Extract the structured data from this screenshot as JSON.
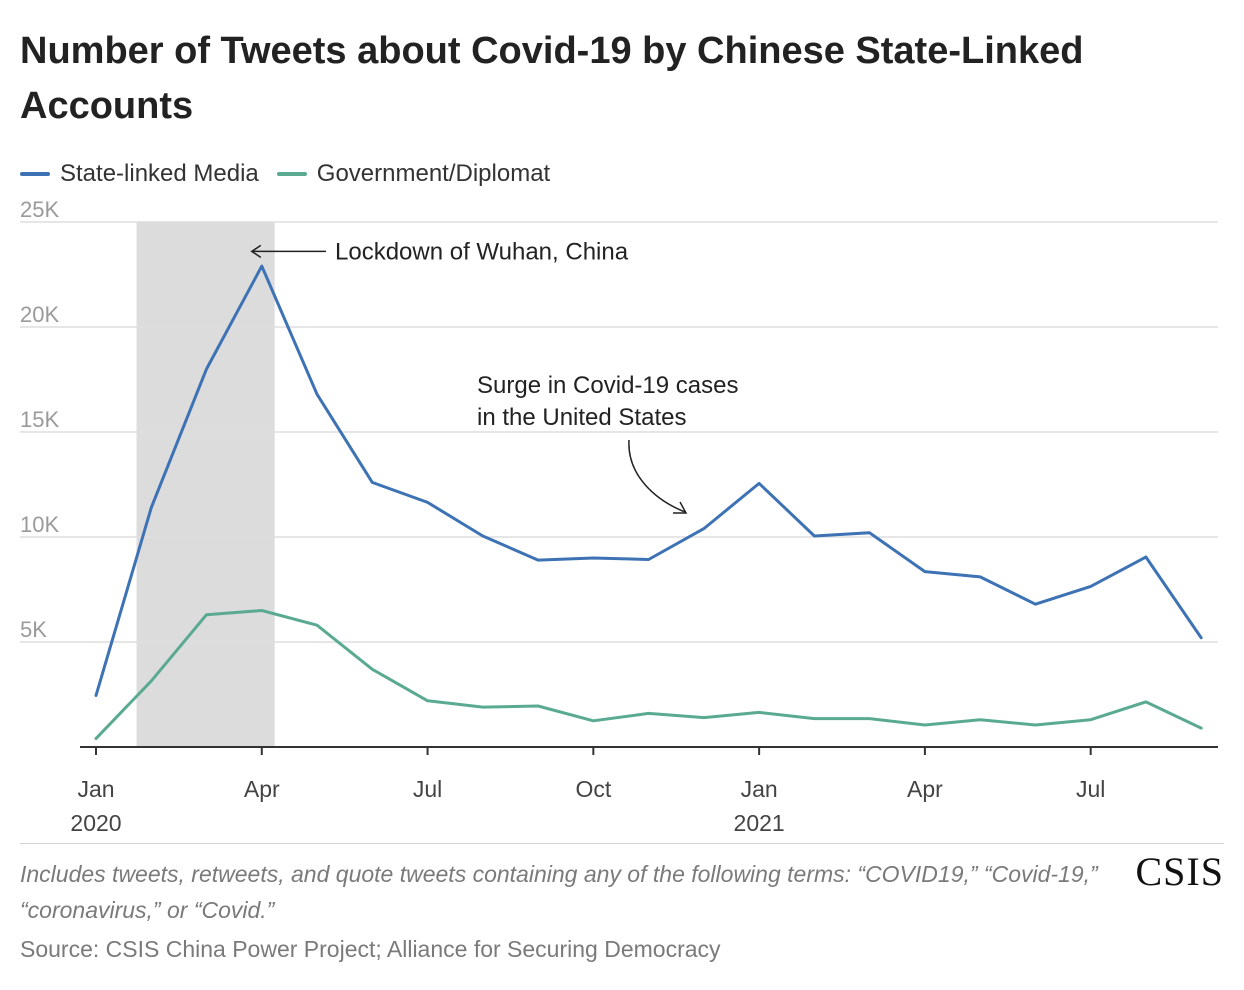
{
  "title": "Number of Tweets about Covid-19 by Chinese State-Linked Accounts",
  "legend": [
    {
      "label": "State-linked Media",
      "color": "#3d72b4"
    },
    {
      "label": "Government/Diplomat",
      "color": "#5aaa92"
    }
  ],
  "note": "Includes tweets, retweets, and quote tweets containing any of the following terms: “COVID19,” “Covid-19,” “coronavirus,” or “Covid.”",
  "source": "Source: CSIS China Power Project; Alliance for Securing Democracy",
  "logo": "CSIS",
  "chart_data": {
    "type": "line",
    "title": "Number of Tweets about Covid-19 by Chinese State-Linked Accounts",
    "x": [
      "2020-01",
      "2020-02",
      "2020-03",
      "2020-04",
      "2020-05",
      "2020-06",
      "2020-07",
      "2020-08",
      "2020-09",
      "2020-10",
      "2020-11",
      "2020-12",
      "2021-01",
      "2021-02",
      "2021-03",
      "2021-04",
      "2021-05",
      "2021-06",
      "2021-07",
      "2021-08",
      "2021-09"
    ],
    "series": [
      {
        "name": "State-linked Media",
        "color": "#3d72b4",
        "values": [
          2450,
          11400,
          18000,
          22900,
          16800,
          12600,
          11650,
          10050,
          8900,
          9000,
          8930,
          10400,
          12550,
          10050,
          10200,
          8350,
          8100,
          6800,
          7650,
          9050,
          5200
        ]
      },
      {
        "name": "Government/Diplomat",
        "color": "#5aaa92",
        "values": [
          400,
          3150,
          6300,
          6500,
          5800,
          3700,
          2200,
          1900,
          1950,
          1250,
          1600,
          1400,
          1650,
          1350,
          1350,
          1050,
          1300,
          1050,
          1300,
          2150,
          900
        ]
      }
    ],
    "y_ticks": [
      {
        "value": 5000,
        "label": "5K"
      },
      {
        "value": 10000,
        "label": "10K"
      },
      {
        "value": 15000,
        "label": "15K"
      },
      {
        "value": 20000,
        "label": "20K"
      },
      {
        "value": 25000,
        "label": "25K"
      }
    ],
    "ylim": [
      0,
      25000
    ],
    "x_ticks": [
      {
        "at": "2020-01",
        "label": "Jan",
        "year": "2020"
      },
      {
        "at": "2020-04",
        "label": "Apr",
        "year": ""
      },
      {
        "at": "2020-07",
        "label": "Jul",
        "year": ""
      },
      {
        "at": "2020-10",
        "label": "Oct",
        "year": ""
      },
      {
        "at": "2021-01",
        "label": "Jan",
        "year": "2021"
      },
      {
        "at": "2021-04",
        "label": "Apr",
        "year": ""
      },
      {
        "at": "2021-07",
        "label": "Jul",
        "year": ""
      }
    ],
    "shaded_range": {
      "from": "2020-01-23",
      "to": "2020-04-08",
      "color": "#dcdcdc"
    },
    "annotations": [
      {
        "text": "Lockdown of Wuhan, China",
        "date": "2020-04",
        "value": 23600
      },
      {
        "text": "Surge in Covid-19 cases in the United States",
        "lines": [
          "Surge in Covid-19 cases",
          "in the United States"
        ],
        "date": "2020-12",
        "value": 11200
      }
    ],
    "grid": true,
    "legend_position": "top-left"
  }
}
